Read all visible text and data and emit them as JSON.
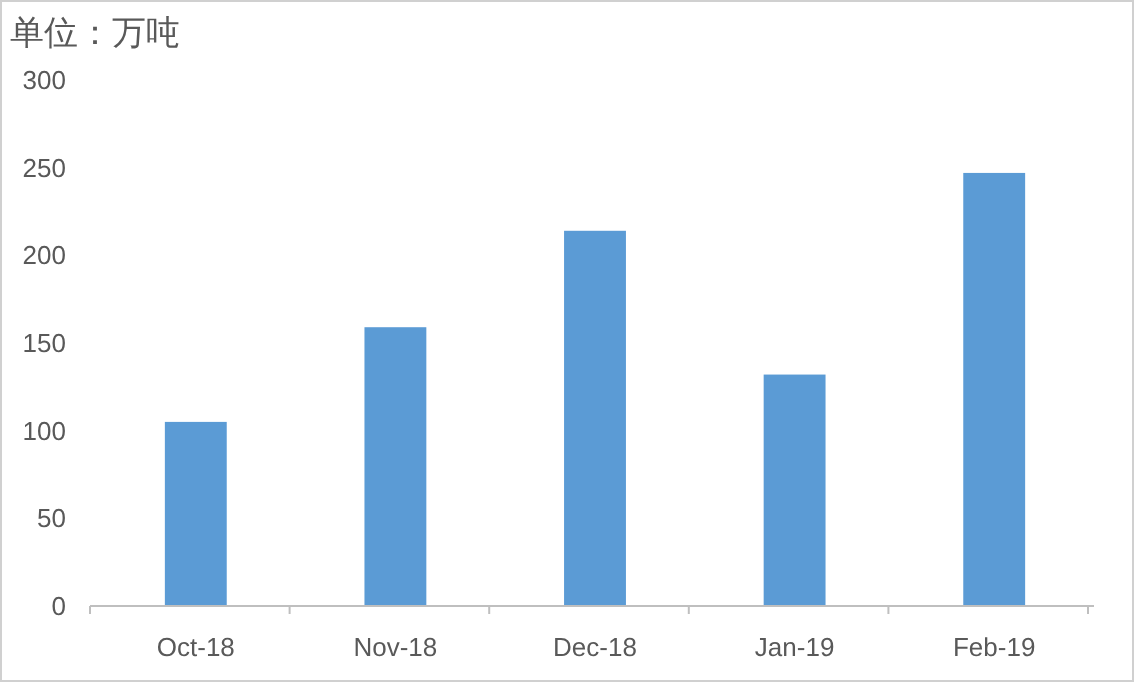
{
  "chart_data": {
    "type": "bar",
    "ylabel": "单位：万吨",
    "categories": [
      "Oct-18",
      "Nov-18",
      "Dec-18",
      "Jan-19",
      "Feb-19"
    ],
    "values": [
      105,
      159,
      214,
      132,
      247
    ],
    "color": "#5b9bd5",
    "ylim": [
      0,
      300
    ],
    "yticks": [
      0,
      50,
      100,
      150,
      200,
      250,
      300
    ],
    "grid": false
  }
}
